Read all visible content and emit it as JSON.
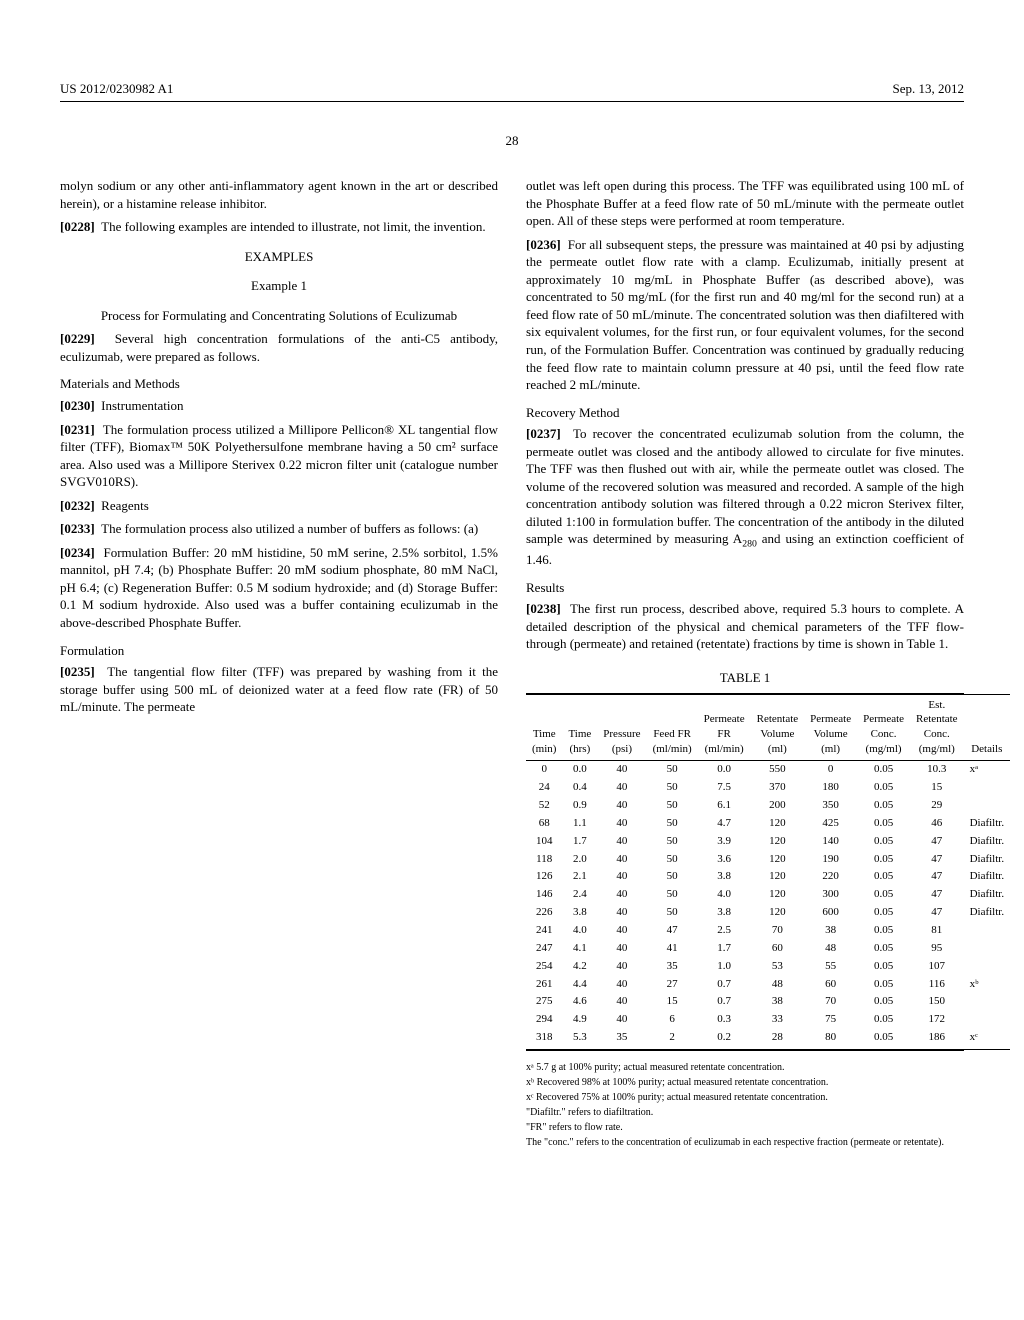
{
  "header": {
    "pub": "US 2012/0230982 A1",
    "date": "Sep. 13, 2012"
  },
  "page": "28",
  "left": {
    "p0228_pre": "molyn sodium or any other anti-inflammatory agent known in the art or described herein), or a histamine release inhibitor.",
    "p0228_num": "[0228]",
    "p0228": "The following examples are intended to illustrate, not limit, the invention.",
    "examples": "EXAMPLES",
    "example1": "Example 1",
    "ex1_title": "Process for Formulating and Concentrating Solutions of Eculizumab",
    "p0229_num": "[0229]",
    "p0229": "Several high concentration formulations of the anti-C5 antibody, eculizumab, were prepared as follows.",
    "mm": "Materials and Methods",
    "p0230_num": "[0230]",
    "p0230": "Instrumentation",
    "p0231_num": "[0231]",
    "p0231": "The formulation process utilized a Millipore Pellicon® XL tangential flow filter (TFF), Biomax™ 50K Polyethersulfone membrane having a 50 cm² surface area. Also used was a Millipore Sterivex 0.22 micron filter unit (catalogue number SVGV010RS).",
    "p0232_num": "[0232]",
    "p0232": "Reagents",
    "p0233_num": "[0233]",
    "p0233": "The formulation process also utilized a number of buffers as follows: (a)",
    "p0234_num": "[0234]",
    "p0234": "Formulation Buffer: 20 mM histidine, 50 mM serine, 2.5% sorbitol, 1.5% mannitol, pH 7.4; (b) Phosphate Buffer: 20 mM sodium phosphate, 80 mM NaCl, pH 6.4; (c) Regeneration Buffer: 0.5 M sodium hydroxide; and (d) Storage Buffer: 0.1 M sodium hydroxide. Also used was a buffer containing eculizumab in the above-described Phosphate Buffer.",
    "formulation": "Formulation",
    "p0235_num": "[0235]",
    "p0235": "The tangential flow filter (TFF) was prepared by washing from it the storage buffer using 500 mL of deionized water at a feed flow rate (FR) of 50 mL/minute. The permeate"
  },
  "right": {
    "p0235_cont": "outlet was left open during this process. The TFF was equilibrated using 100 mL of the Phosphate Buffer at a feed flow rate of 50 mL/minute with the permeate outlet open. All of these steps were performed at room temperature.",
    "p0236_num": "[0236]",
    "p0236": "For all subsequent steps, the pressure was maintained at 40 psi by adjusting the permeate outlet flow rate with a clamp. Eculizumab, initially present at approximately 10 mg/mL in Phosphate Buffer (as described above), was concentrated to 50 mg/mL (for the first run and 40 mg/ml for the second run) at a feed flow rate of 50 mL/minute. The concentrated solution was then diafiltered with six equivalent volumes, for the first run, or four equivalent volumes, for the second run, of the Formulation Buffer. Concentration was continued by gradually reducing the feed flow rate to maintain column pressure at 40 psi, until the feed flow rate reached 2 mL/minute.",
    "recovery": "Recovery Method",
    "p0237_num": "[0237]",
    "p0237_a": "To recover the concentrated eculizumab solution from the column, the permeate outlet was closed and the antibody allowed to circulate for five minutes. The TFF was then flushed out with air, while the permeate outlet was closed. The volume of the recovered solution was measured and recorded. A sample of the high concentration antibody solution was filtered through a 0.22 micron Sterivex filter, diluted 1:100 in formulation buffer. The concentration of the antibody in the diluted sample was determined by measuring A",
    "p0237_sub": "280",
    "p0237_b": " and using an extinction coefficient of 1.46.",
    "results": "Results",
    "p0238_num": "[0238]",
    "p0238": "The first run process, described above, required 5.3 hours to complete. A detailed description of the physical and chemical parameters of the TFF flow-through (permeate) and retained (retentate) fractions by time is shown in Table 1."
  },
  "table": {
    "title": "TABLE 1",
    "headers": [
      "Time (min)",
      "Time (hrs)",
      "Pressure (psi)",
      "Feed FR (ml/min)",
      "Permeate FR (ml/min)",
      "Retentate Volume (ml)",
      "Permeate Volume (ml)",
      "Permeate Conc. (mg/ml)",
      "Est. Retentate Conc. (mg/ml)",
      "Details"
    ],
    "rows": [
      [
        "0",
        "0.0",
        "40",
        "50",
        "0.0",
        "550",
        "0",
        "0.05",
        "10.3",
        "xᵃ"
      ],
      [
        "24",
        "0.4",
        "40",
        "50",
        "7.5",
        "370",
        "180",
        "0.05",
        "15",
        ""
      ],
      [
        "52",
        "0.9",
        "40",
        "50",
        "6.1",
        "200",
        "350",
        "0.05",
        "29",
        ""
      ],
      [
        "68",
        "1.1",
        "40",
        "50",
        "4.7",
        "120",
        "425",
        "0.05",
        "46",
        "Diafiltr."
      ],
      [
        "104",
        "1.7",
        "40",
        "50",
        "3.9",
        "120",
        "140",
        "0.05",
        "47",
        "Diafiltr."
      ],
      [
        "118",
        "2.0",
        "40",
        "50",
        "3.6",
        "120",
        "190",
        "0.05",
        "47",
        "Diafiltr."
      ],
      [
        "126",
        "2.1",
        "40",
        "50",
        "3.8",
        "120",
        "220",
        "0.05",
        "47",
        "Diafiltr."
      ],
      [
        "146",
        "2.4",
        "40",
        "50",
        "4.0",
        "120",
        "300",
        "0.05",
        "47",
        "Diafiltr."
      ],
      [
        "226",
        "3.8",
        "40",
        "50",
        "3.8",
        "120",
        "600",
        "0.05",
        "47",
        "Diafiltr."
      ],
      [
        "241",
        "4.0",
        "40",
        "47",
        "2.5",
        "70",
        "38",
        "0.05",
        "81",
        ""
      ],
      [
        "247",
        "4.1",
        "40",
        "41",
        "1.7",
        "60",
        "48",
        "0.05",
        "95",
        ""
      ],
      [
        "254",
        "4.2",
        "40",
        "35",
        "1.0",
        "53",
        "55",
        "0.05",
        "107",
        ""
      ],
      [
        "261",
        "4.4",
        "40",
        "27",
        "0.7",
        "48",
        "60",
        "0.05",
        "116",
        "xᵇ"
      ],
      [
        "275",
        "4.6",
        "40",
        "15",
        "0.7",
        "38",
        "70",
        "0.05",
        "150",
        ""
      ],
      [
        "294",
        "4.9",
        "40",
        "6",
        "0.3",
        "33",
        "75",
        "0.05",
        "172",
        ""
      ],
      [
        "318",
        "5.3",
        "35",
        "2",
        "0.2",
        "28",
        "80",
        "0.05",
        "186",
        "xᶜ"
      ]
    ],
    "footnotes": [
      "xᵃ 5.7 g at 100% purity; actual measured retentate concentration.",
      "xᵇ Recovered 98% at 100% purity; actual measured retentate concentration.",
      "xᶜ Recovered 75% at 100% purity; actual measured retentate concentration.",
      "\"Diafiltr.\" refers to diafiltration.",
      "\"FR\" refers to flow rate.",
      "The \"conc.\" refers to the concentration of eculizumab in each respective fraction (permeate or retentate)."
    ]
  }
}
